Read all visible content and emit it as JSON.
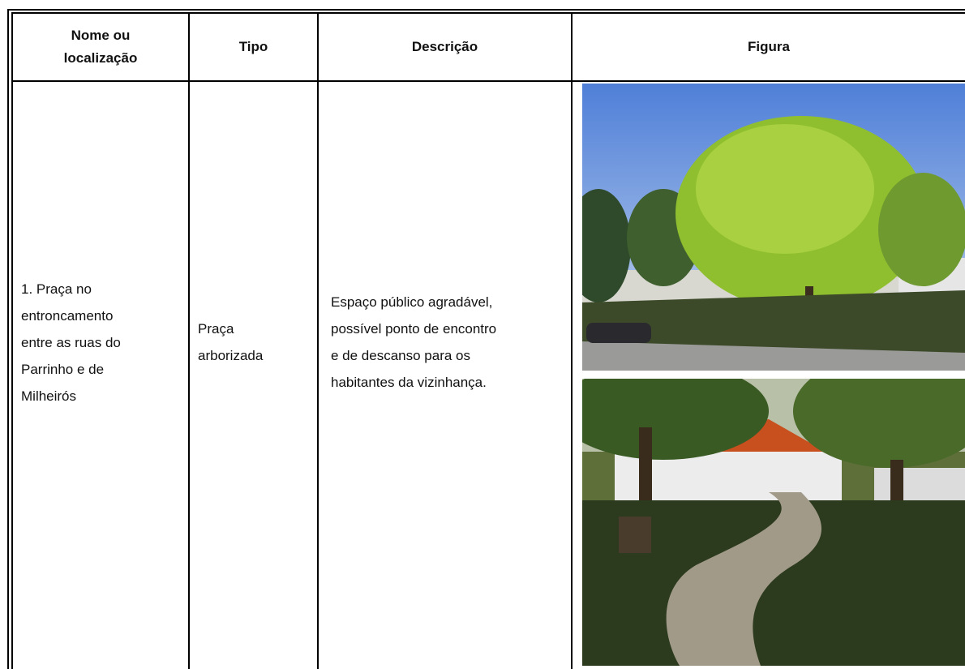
{
  "table": {
    "header": [
      [
        "Nome ou",
        "localização"
      ],
      [
        "Tipo"
      ],
      [
        "Descrição"
      ],
      [
        "Figura"
      ]
    ],
    "rows": [
      [
        [
          "1. Praça no",
          "entroncamento",
          "entre as ruas do",
          "Parrinho e de",
          "Milheirós"
        ],
        [
          "Praça",
          "arborizada"
        ],
        [
          "Espaço público agradável,",
          "possível ponto de encontro",
          "e de descanso para os",
          "habitantes da vizinhança."
        ]
      ]
    ]
  }
}
